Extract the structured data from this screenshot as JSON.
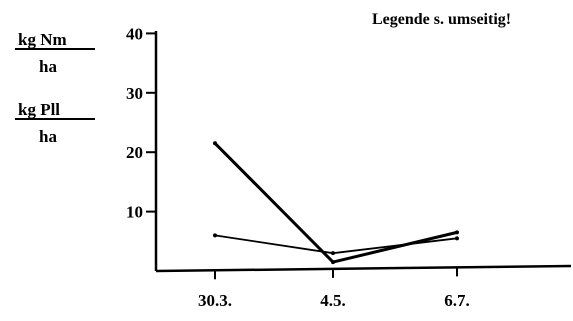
{
  "note": "Legende s. umseitig!",
  "chart_data": {
    "type": "line",
    "ylabel_1": {
      "numerator": "kg Nm",
      "denominator": "ha"
    },
    "ylabel_2": {
      "numerator": "kg Pll",
      "denominator": "ha"
    },
    "categories": [
      "30.3.",
      "4.5.",
      "6.7."
    ],
    "y_ticks": [
      "10",
      "20",
      "30",
      "40"
    ],
    "ylim": [
      0,
      45
    ],
    "series": [
      {
        "values": [
          21.5,
          1.5,
          6.5
        ]
      },
      {
        "values": [
          6,
          3,
          5.5
        ]
      }
    ]
  }
}
